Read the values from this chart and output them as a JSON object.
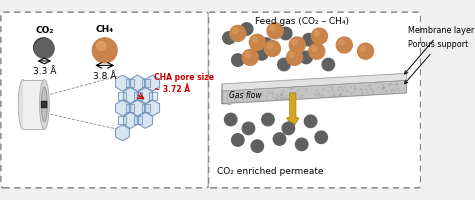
{
  "bg_color": "#f0f0f0",
  "panel_bg": "#ffffff",
  "co2_color": "#606060",
  "ch4_color": "#c8844a",
  "co2_label": "CO₂",
  "ch4_label": "CH₄",
  "co2_size_label": "3.3 Å",
  "ch4_size_label": "3.8 Å",
  "cha_pore_label": "CHA pore size\n~ 3.72 Å",
  "cha_pore_color": "#cc0000",
  "feed_gas_label": "Feed gas (CO₂ – CH₄)",
  "membrane_layer_label": "Membrane layer",
  "porous_support_label": "Porous support",
  "gas_flow_label": "Gas flow",
  "permeate_label": "CO₂ enriched permeate",
  "zeolite_color": "#b8d0e8",
  "zeolite_edge_color": "#7090b8",
  "arrow_color": "#d4a820",
  "arrow_edge_color": "#a07800"
}
